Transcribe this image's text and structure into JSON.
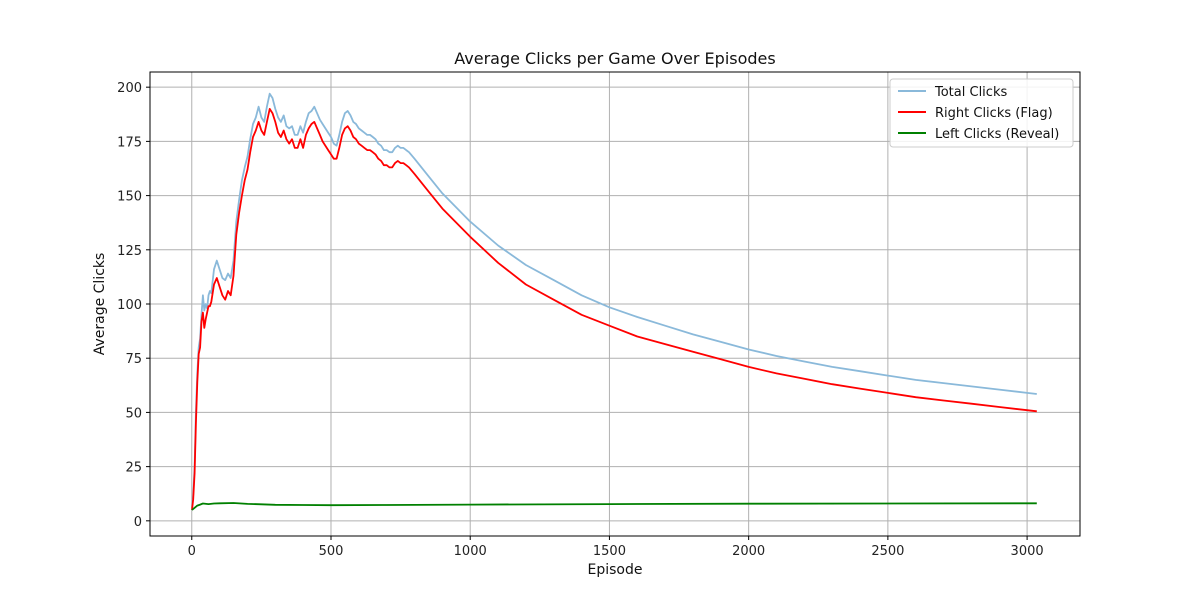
{
  "chart_data": {
    "type": "line",
    "title": "Average Clicks per Game Over Episodes",
    "xlabel": "Episode",
    "ylabel": "Average Clicks",
    "xlim": [
      -150,
      3190
    ],
    "ylim": [
      -7,
      207
    ],
    "xticks": [
      0,
      500,
      1000,
      1500,
      2000,
      2500,
      3000
    ],
    "yticks": [
      0,
      25,
      50,
      75,
      100,
      125,
      150,
      175,
      200
    ],
    "grid": true,
    "legend_position": "top-right",
    "series": [
      {
        "name": "Total Clicks",
        "color": "#8ab9da",
        "points": [
          [
            1,
            6
          ],
          [
            5,
            12
          ],
          [
            10,
            25
          ],
          [
            15,
            50
          ],
          [
            20,
            68
          ],
          [
            25,
            80
          ],
          [
            30,
            84
          ],
          [
            35,
            95
          ],
          [
            40,
            104
          ],
          [
            45,
            97
          ],
          [
            50,
            100
          ],
          [
            55,
            98
          ],
          [
            60,
            104
          ],
          [
            65,
            106
          ],
          [
            70,
            105
          ],
          [
            80,
            116
          ],
          [
            90,
            120
          ],
          [
            100,
            116
          ],
          [
            110,
            112
          ],
          [
            120,
            111
          ],
          [
            130,
            114
          ],
          [
            140,
            112
          ],
          [
            150,
            120
          ],
          [
            160,
            138
          ],
          [
            170,
            148
          ],
          [
            180,
            157
          ],
          [
            190,
            163
          ],
          [
            200,
            168
          ],
          [
            210,
            176
          ],
          [
            220,
            183
          ],
          [
            230,
            186
          ],
          [
            240,
            191
          ],
          [
            250,
            186
          ],
          [
            260,
            184
          ],
          [
            270,
            191
          ],
          [
            280,
            197
          ],
          [
            290,
            195
          ],
          [
            300,
            190
          ],
          [
            310,
            186
          ],
          [
            320,
            184
          ],
          [
            330,
            187
          ],
          [
            340,
            182
          ],
          [
            350,
            181
          ],
          [
            360,
            182
          ],
          [
            370,
            178
          ],
          [
            380,
            178
          ],
          [
            390,
            182
          ],
          [
            400,
            179
          ],
          [
            410,
            184
          ],
          [
            420,
            188
          ],
          [
            430,
            189
          ],
          [
            440,
            191
          ],
          [
            450,
            188
          ],
          [
            460,
            185
          ],
          [
            470,
            183
          ],
          [
            480,
            181
          ],
          [
            490,
            179
          ],
          [
            500,
            177
          ],
          [
            510,
            174
          ],
          [
            520,
            173
          ],
          [
            530,
            178
          ],
          [
            540,
            184
          ],
          [
            550,
            188
          ],
          [
            560,
            189
          ],
          [
            570,
            187
          ],
          [
            580,
            184
          ],
          [
            590,
            183
          ],
          [
            600,
            181
          ],
          [
            610,
            180
          ],
          [
            620,
            179
          ],
          [
            630,
            178
          ],
          [
            640,
            178
          ],
          [
            650,
            177
          ],
          [
            660,
            176
          ],
          [
            670,
            174
          ],
          [
            680,
            173
          ],
          [
            690,
            171
          ],
          [
            700,
            171
          ],
          [
            710,
            170
          ],
          [
            720,
            170
          ],
          [
            730,
            172
          ],
          [
            740,
            173
          ],
          [
            750,
            172
          ],
          [
            760,
            172
          ],
          [
            770,
            171
          ],
          [
            780,
            170
          ],
          [
            800,
            167
          ],
          [
            850,
            159
          ],
          [
            900,
            151
          ],
          [
            1000,
            138
          ],
          [
            1100,
            127
          ],
          [
            1200,
            118
          ],
          [
            1300,
            111
          ],
          [
            1400,
            104
          ],
          [
            1500,
            98.5
          ],
          [
            1600,
            94
          ],
          [
            1700,
            90
          ],
          [
            1800,
            86
          ],
          [
            1900,
            82.5
          ],
          [
            2000,
            79
          ],
          [
            2100,
            76
          ],
          [
            2200,
            73.5
          ],
          [
            2300,
            71
          ],
          [
            2400,
            69
          ],
          [
            2500,
            67
          ],
          [
            2600,
            65
          ],
          [
            2700,
            63.5
          ],
          [
            2800,
            62
          ],
          [
            2900,
            60.5
          ],
          [
            3000,
            59
          ],
          [
            3035,
            58.5
          ]
        ]
      },
      {
        "name": "Right Clicks (Flag)",
        "color": "#ff0000",
        "points": [
          [
            1,
            5
          ],
          [
            5,
            10
          ],
          [
            10,
            22
          ],
          [
            15,
            45
          ],
          [
            20,
            64
          ],
          [
            25,
            77
          ],
          [
            30,
            80
          ],
          [
            35,
            92
          ],
          [
            40,
            96
          ],
          [
            45,
            89
          ],
          [
            50,
            93
          ],
          [
            55,
            96
          ],
          [
            60,
            99
          ],
          [
            65,
            99
          ],
          [
            70,
            101
          ],
          [
            80,
            109
          ],
          [
            90,
            112
          ],
          [
            100,
            108
          ],
          [
            110,
            104
          ],
          [
            120,
            102
          ],
          [
            130,
            106
          ],
          [
            140,
            104
          ],
          [
            150,
            113
          ],
          [
            160,
            132
          ],
          [
            170,
            142
          ],
          [
            180,
            150
          ],
          [
            190,
            157
          ],
          [
            200,
            162
          ],
          [
            210,
            170
          ],
          [
            220,
            177
          ],
          [
            230,
            180
          ],
          [
            240,
            184
          ],
          [
            250,
            180
          ],
          [
            260,
            178
          ],
          [
            270,
            184
          ],
          [
            280,
            190
          ],
          [
            290,
            188
          ],
          [
            300,
            184
          ],
          [
            310,
            179
          ],
          [
            320,
            177
          ],
          [
            330,
            180
          ],
          [
            340,
            176
          ],
          [
            350,
            174
          ],
          [
            360,
            176
          ],
          [
            370,
            172
          ],
          [
            380,
            172
          ],
          [
            390,
            176
          ],
          [
            400,
            172
          ],
          [
            410,
            178
          ],
          [
            420,
            181
          ],
          [
            430,
            183
          ],
          [
            440,
            184
          ],
          [
            450,
            181
          ],
          [
            460,
            178
          ],
          [
            470,
            175
          ],
          [
            480,
            173
          ],
          [
            490,
            171
          ],
          [
            500,
            169
          ],
          [
            510,
            167
          ],
          [
            520,
            167
          ],
          [
            530,
            172
          ],
          [
            540,
            178
          ],
          [
            550,
            181
          ],
          [
            560,
            182
          ],
          [
            570,
            180
          ],
          [
            580,
            177
          ],
          [
            590,
            176
          ],
          [
            600,
            174
          ],
          [
            610,
            173
          ],
          [
            620,
            172
          ],
          [
            630,
            171
          ],
          [
            640,
            171
          ],
          [
            650,
            170
          ],
          [
            660,
            169
          ],
          [
            670,
            167
          ],
          [
            680,
            166
          ],
          [
            690,
            164
          ],
          [
            700,
            164
          ],
          [
            710,
            163
          ],
          [
            720,
            163
          ],
          [
            730,
            165
          ],
          [
            740,
            166
          ],
          [
            750,
            165
          ],
          [
            760,
            165
          ],
          [
            770,
            164
          ],
          [
            780,
            163
          ],
          [
            800,
            160
          ],
          [
            850,
            152
          ],
          [
            900,
            144
          ],
          [
            1000,
            131
          ],
          [
            1100,
            119
          ],
          [
            1200,
            109
          ],
          [
            1300,
            102
          ],
          [
            1400,
            95
          ],
          [
            1500,
            90
          ],
          [
            1600,
            85
          ],
          [
            1700,
            81.5
          ],
          [
            1800,
            78
          ],
          [
            1900,
            74.5
          ],
          [
            2000,
            71
          ],
          [
            2100,
            68
          ],
          [
            2200,
            65.5
          ],
          [
            2300,
            63
          ],
          [
            2400,
            61
          ],
          [
            2500,
            59
          ],
          [
            2600,
            57
          ],
          [
            2700,
            55.5
          ],
          [
            2800,
            54
          ],
          [
            2900,
            52.5
          ],
          [
            3000,
            51
          ],
          [
            3035,
            50.5
          ]
        ]
      },
      {
        "name": "Left Clicks (Reveal)",
        "color": "#008000",
        "points": [
          [
            1,
            5
          ],
          [
            10,
            6
          ],
          [
            20,
            7
          ],
          [
            30,
            7.5
          ],
          [
            40,
            8
          ],
          [
            60,
            7.7
          ],
          [
            80,
            8
          ],
          [
            100,
            8.1
          ],
          [
            150,
            8.2
          ],
          [
            200,
            7.8
          ],
          [
            250,
            7.6
          ],
          [
            300,
            7.4
          ],
          [
            400,
            7.3
          ],
          [
            500,
            7.2
          ],
          [
            700,
            7.3
          ],
          [
            1000,
            7.5
          ],
          [
            1500,
            7.7
          ],
          [
            2000,
            7.9
          ],
          [
            2500,
            8.0
          ],
          [
            3000,
            8.1
          ],
          [
            3035,
            8.1
          ]
        ]
      }
    ]
  }
}
